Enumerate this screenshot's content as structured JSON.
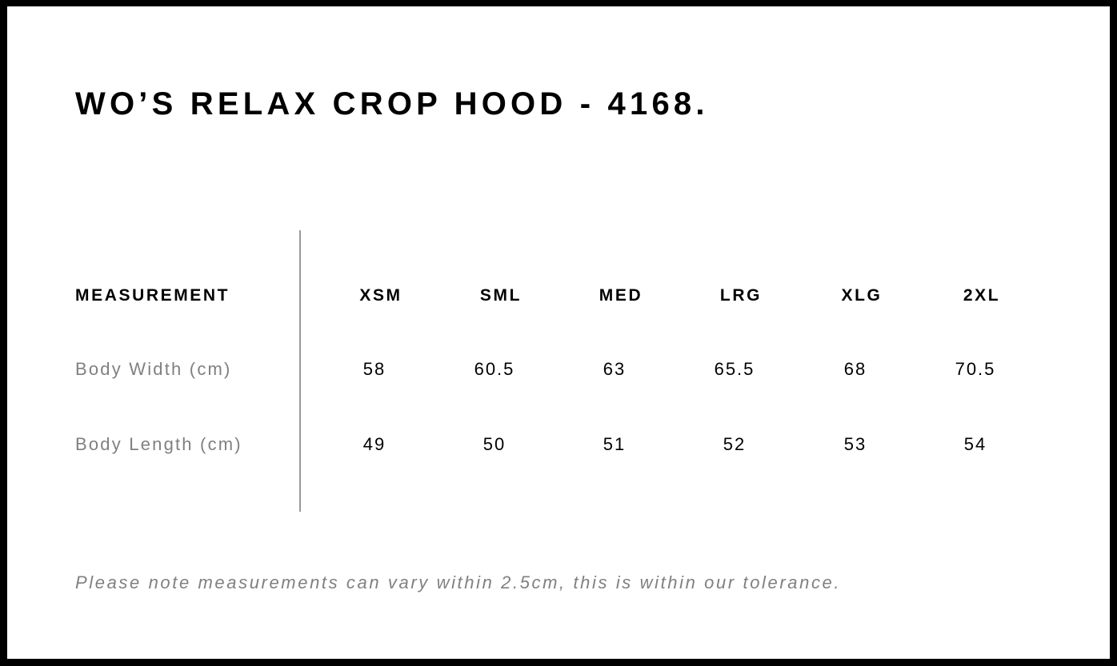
{
  "title": "WO’S RELAX CROP HOOD - 4168.",
  "table": {
    "header_label": "MEASUREMENT",
    "sizes": [
      "XSM",
      "SML",
      "MED",
      "LRG",
      "XLG",
      "2XL"
    ],
    "rows": [
      {
        "label": "Body Width (cm)",
        "values": [
          "58",
          "60.5",
          "63",
          "65.5",
          "68",
          "70.5"
        ]
      },
      {
        "label": "Body Length (cm)",
        "values": [
          "49",
          "50",
          "51",
          "52",
          "53",
          "54"
        ]
      }
    ]
  },
  "note": "Please note measurements can vary within 2.5cm, this is within our tolerance.",
  "colors": {
    "border": "#000000",
    "label_gray": "#808080",
    "divider": "#999999"
  }
}
